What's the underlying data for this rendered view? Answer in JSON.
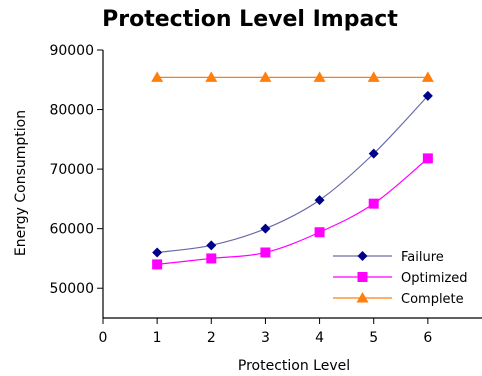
{
  "chart_data": {
    "type": "line",
    "title": "Protection Level Impact",
    "xlabel": "Protection Level",
    "ylabel": "Energy Consumption",
    "xlim": [
      0,
      7
    ],
    "ylim": [
      45000,
      90000
    ],
    "xticks": [
      "0",
      "1",
      "2",
      "3",
      "4",
      "5",
      "6"
    ],
    "yticks": [
      "50000",
      "60000",
      "70000",
      "80000",
      "90000"
    ],
    "grid": false,
    "legend_position": "bottom-right",
    "x": [
      1,
      2,
      3,
      4,
      5,
      6
    ],
    "series": [
      {
        "name": "Failure",
        "values": [
          56000,
          57200,
          60000,
          64800,
          72600,
          82300
        ],
        "color": "#00008b",
        "line_color": "#6a6aaa",
        "marker": "diamond"
      },
      {
        "name": "Optimized",
        "values": [
          54000,
          55000,
          56000,
          59400,
          64200,
          71800
        ],
        "color": "#ff00ff",
        "line_color": "#ff00ff",
        "marker": "square"
      },
      {
        "name": "Complete",
        "values": [
          85400,
          85400,
          85400,
          85400,
          85400,
          85400
        ],
        "color": "#ff7f0e",
        "line_color": "#ff7f0e",
        "marker": "triangle"
      }
    ]
  }
}
